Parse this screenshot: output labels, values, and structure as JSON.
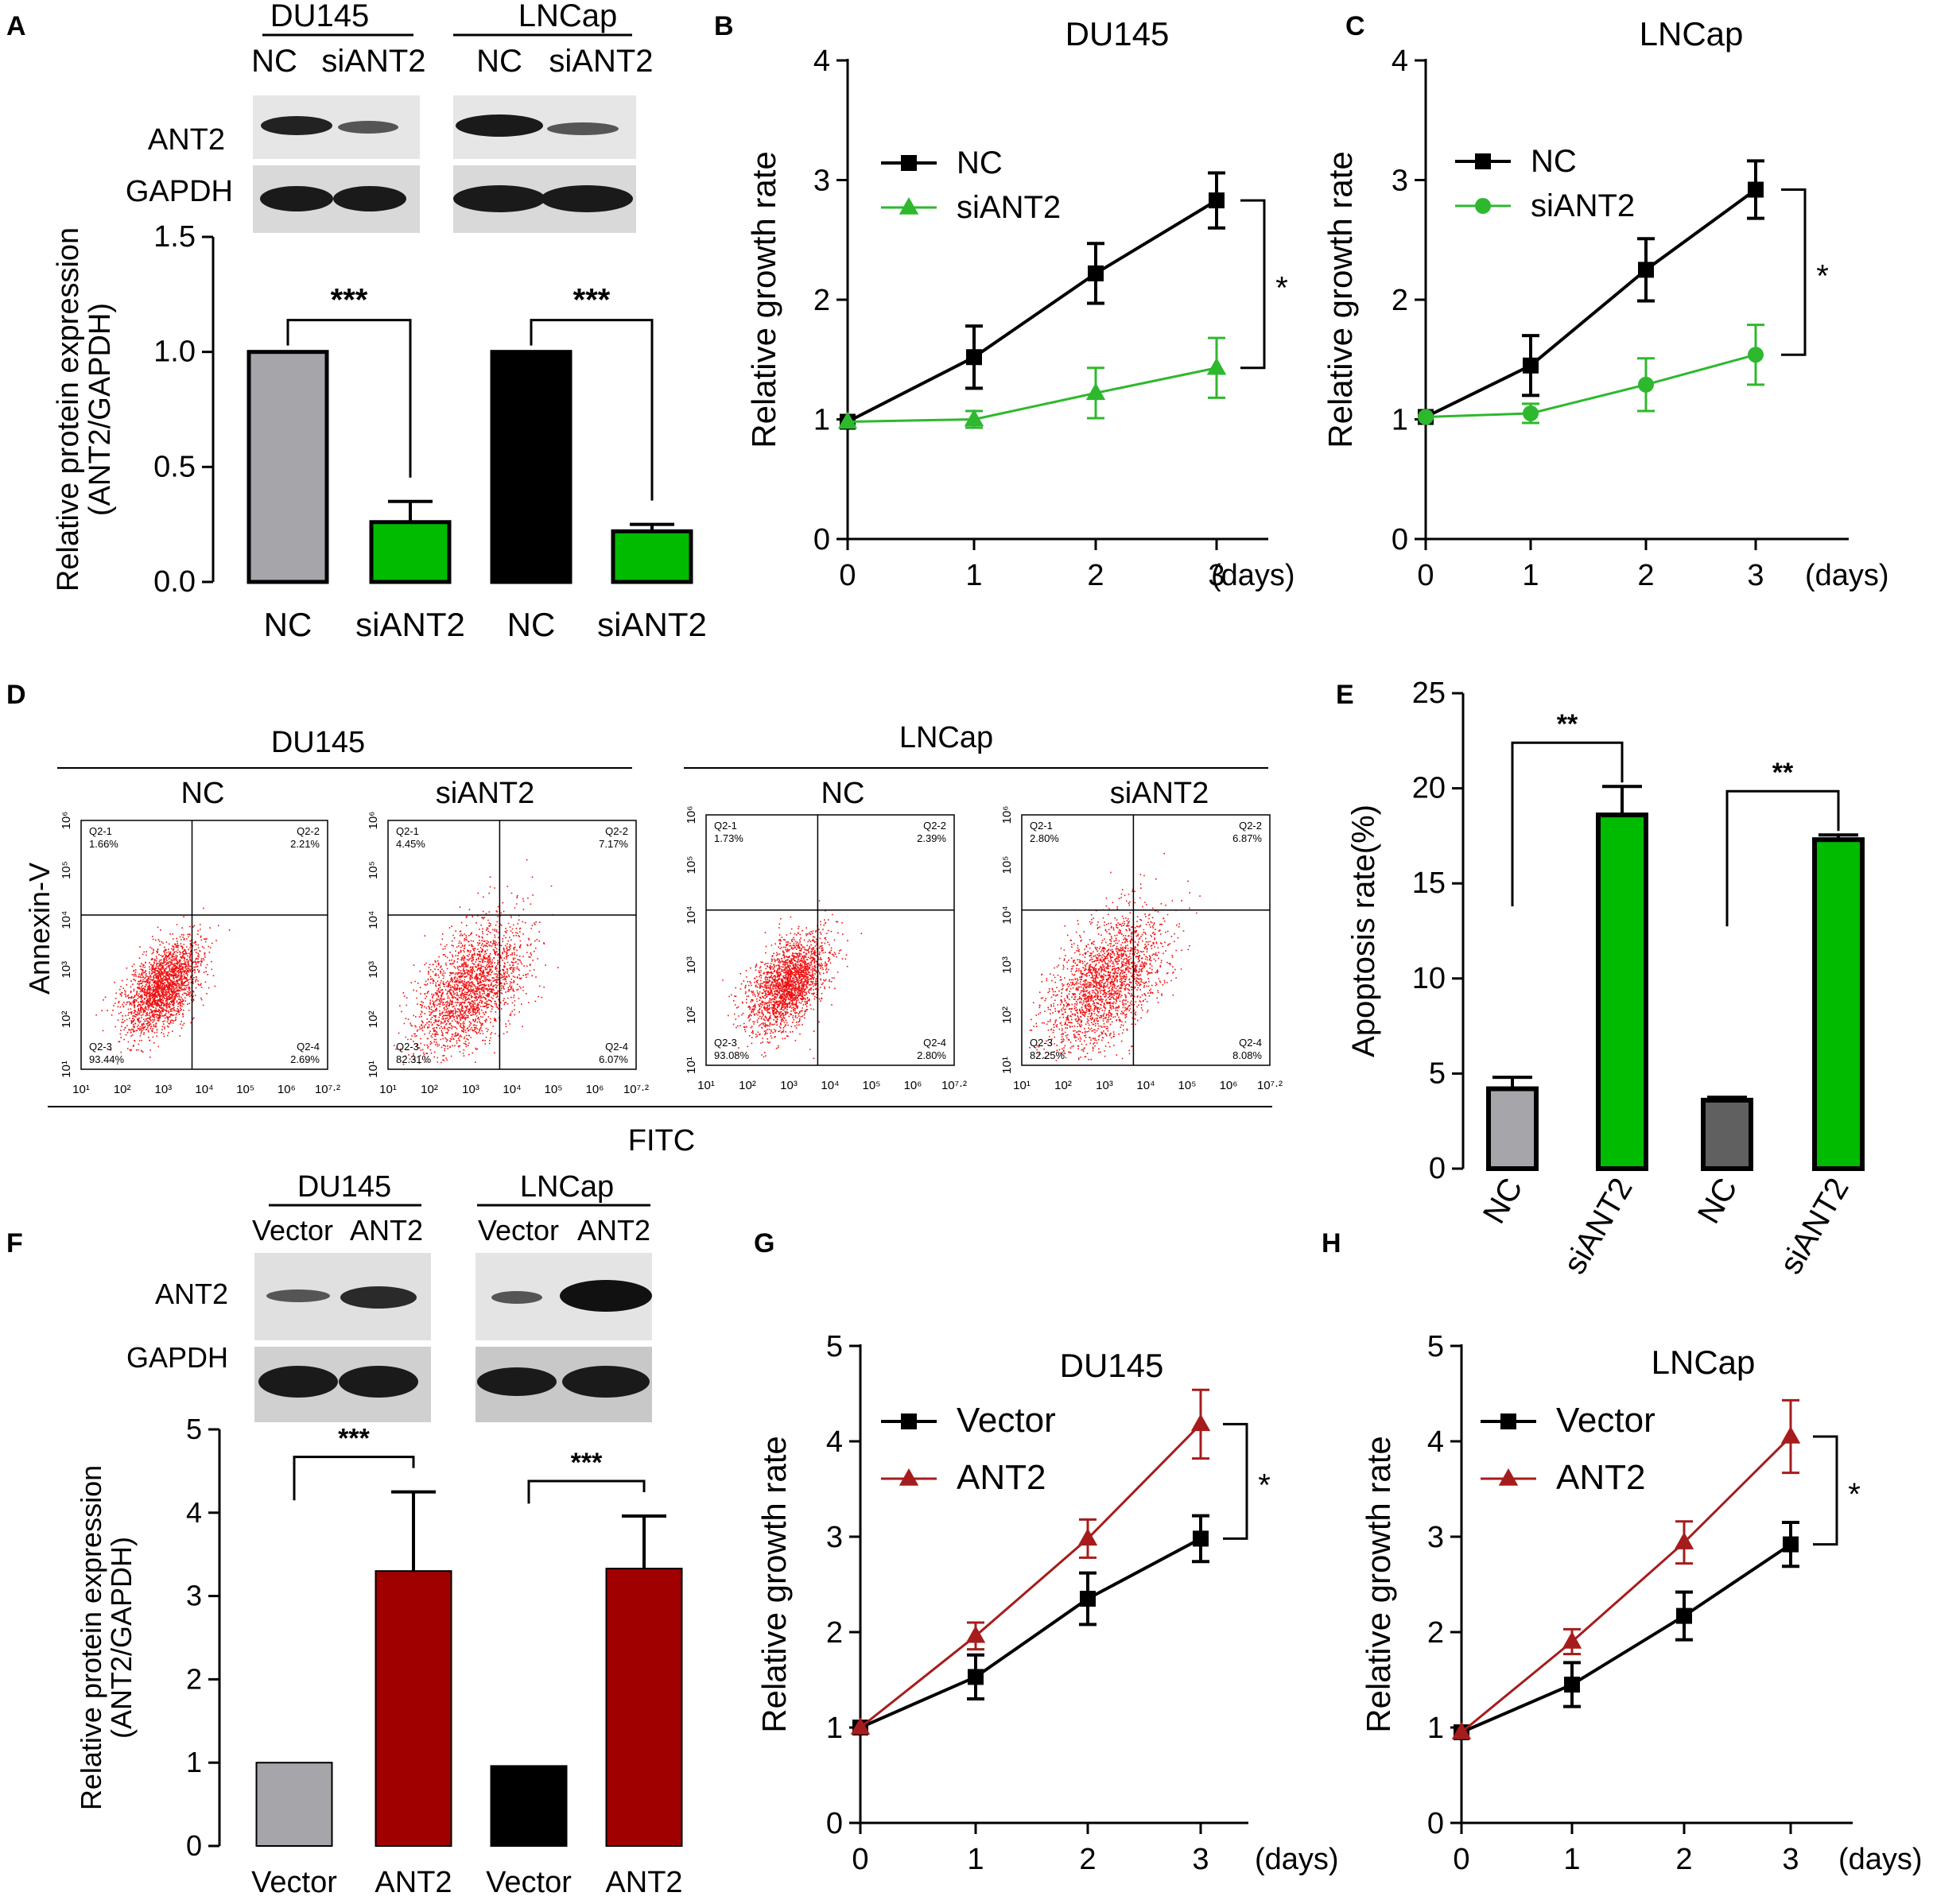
{
  "colors": {
    "black": "#000000",
    "grey": "#a6a6aa",
    "darkgrey": "#606060",
    "green": "#00bb00",
    "green_line": "#2eb82e",
    "red": "#a00000",
    "red_line": "#a61c1c",
    "dot": "#ee1111"
  },
  "panel_labels": {
    "A": "A",
    "B": "B",
    "C": "C",
    "D": "D",
    "E": "E",
    "F": "F",
    "G": "G",
    "H": "H"
  },
  "units": {
    "days": "(days)"
  },
  "cell_lines": {
    "du145": "DU145",
    "lncap": "LNCap"
  },
  "labels": {
    "nc": "NC",
    "siant2": "siANT2",
    "vector": "Vector",
    "ant2": "ANT2",
    "ant2_band": "ANT2",
    "gapdh_band": "GAPDH"
  },
  "sig": {
    "three": "***",
    "two": "**",
    "one": "*"
  },
  "facs": {
    "y_axis_label": "Annexin-V",
    "x_axis_label": "FITC",
    "x_ticks": [
      "10¹",
      "10²",
      "10³",
      "10⁴",
      "10⁵",
      "10⁶",
      "10⁷·²"
    ],
    "y_ticks": [
      "10¹",
      "10²",
      "10³",
      "10⁴",
      "10⁵",
      "10⁶"
    ],
    "quadrant_names": [
      "Q2-1",
      "Q2-2",
      "Q2-3",
      "Q2-4"
    ],
    "plots": [
      {
        "line": "DU145",
        "group": "NC",
        "q1": "1.66%",
        "q2": "2.21%",
        "q3": "93.44%",
        "q4": "2.69%"
      },
      {
        "line": "DU145",
        "group": "siANT2",
        "q1": "4.45%",
        "q2": "7.17%",
        "q3": "82.31%",
        "q4": "6.07%"
      },
      {
        "line": "LNCap",
        "group": "NC",
        "q1": "1.73%",
        "q2": "2.39%",
        "q3": "93.08%",
        "q4": "2.80%"
      },
      {
        "line": "LNCap",
        "group": "siANT2",
        "q1": "2.80%",
        "q2": "6.87%",
        "q3": "82.25%",
        "q4": "8.08%"
      }
    ]
  },
  "chart_data": [
    {
      "panel": "A",
      "type": "bar",
      "ylabel": "Relative protein expression (ANT2/GAPDH)",
      "ylim": [
        0,
        1.5
      ],
      "yticks": [
        "0.0",
        "0.5",
        "1.0",
        "1.5"
      ],
      "categories": [
        "NC",
        "siANT2",
        "NC",
        "siANT2"
      ],
      "values": [
        1.0,
        0.26,
        1.0,
        0.22
      ],
      "errors": [
        0,
        0.09,
        0,
        0.03
      ],
      "bar_colors": [
        "#a6a6aa",
        "#00bb00",
        "#000000",
        "#00bb00"
      ],
      "significance": [
        "***",
        "***"
      ]
    },
    {
      "panel": "B",
      "type": "line",
      "title": "DU145",
      "ylabel": "Relative growth rate",
      "xlabel": "(days)",
      "ylim": [
        0,
        4
      ],
      "yticks": [
        "0",
        "1",
        "2",
        "3",
        "4"
      ],
      "xticks": [
        "0",
        "1",
        "2",
        "3"
      ],
      "series": [
        {
          "name": "NC",
          "x": [
            0,
            1,
            2,
            3
          ],
          "values": [
            0.98,
            1.52,
            2.22,
            2.83
          ],
          "errors": [
            0.02,
            0.26,
            0.25,
            0.23
          ]
        },
        {
          "name": "siANT2",
          "x": [
            0,
            1,
            2,
            3
          ],
          "values": [
            0.98,
            1.0,
            1.22,
            1.43
          ],
          "errors": [
            0.02,
            0.07,
            0.21,
            0.25
          ]
        }
      ],
      "significance": "*"
    },
    {
      "panel": "C",
      "type": "line",
      "title": "LNCap",
      "ylabel": "Relative growth rate",
      "xlabel": "(days)",
      "ylim": [
        0,
        4
      ],
      "yticks": [
        "0",
        "1",
        "2",
        "3",
        "4"
      ],
      "xticks": [
        "0",
        "1",
        "2",
        "3"
      ],
      "series": [
        {
          "name": "NC",
          "x": [
            0,
            1,
            2,
            3
          ],
          "values": [
            1.02,
            1.45,
            2.25,
            2.92
          ],
          "errors": [
            0.02,
            0.25,
            0.26,
            0.24
          ]
        },
        {
          "name": "siANT2",
          "x": [
            0,
            1,
            2,
            3
          ],
          "values": [
            1.02,
            1.05,
            1.29,
            1.54
          ],
          "errors": [
            0.02,
            0.08,
            0.22,
            0.25
          ]
        }
      ],
      "significance": "*"
    },
    {
      "panel": "E",
      "type": "bar",
      "ylabel": "Apoptosis rate(%)",
      "ylim": [
        0,
        25
      ],
      "yticks": [
        "0",
        "5",
        "10",
        "15",
        "20",
        "25"
      ],
      "categories": [
        "NC",
        "siANT2",
        "NC",
        "siANT2"
      ],
      "values": [
        4.2,
        18.6,
        3.6,
        17.3
      ],
      "errors": [
        0.6,
        1.5,
        0.15,
        0.25
      ],
      "bar_colors": [
        "#a6a6aa",
        "#00bb00",
        "#606060",
        "#00bb00"
      ],
      "significance": [
        "**",
        "**"
      ]
    },
    {
      "panel": "F",
      "type": "bar",
      "ylabel": "Relative protein expression (ANT2/GAPDH)",
      "ylim": [
        0,
        5
      ],
      "yticks": [
        "0",
        "1",
        "2",
        "3",
        "4",
        "5"
      ],
      "categories": [
        "Vector",
        "ANT2",
        "Vector",
        "ANT2"
      ],
      "values": [
        1.0,
        3.3,
        0.96,
        3.33
      ],
      "errors": [
        0,
        0.95,
        0,
        0.63
      ],
      "bar_colors": [
        "#a6a6aa",
        "#a00000",
        "#000000",
        "#a00000"
      ],
      "significance": [
        "***",
        "***"
      ]
    },
    {
      "panel": "G",
      "type": "line",
      "title": "DU145",
      "ylabel": "Relative growth rate",
      "xlabel": "(days)",
      "ylim": [
        0,
        5
      ],
      "yticks": [
        "0",
        "1",
        "2",
        "3",
        "4",
        "5"
      ],
      "xticks": [
        "0",
        "1",
        "2",
        "3"
      ],
      "series": [
        {
          "name": "Vector",
          "x": [
            0,
            1,
            2,
            3
          ],
          "values": [
            1.0,
            1.53,
            2.35,
            2.98
          ],
          "errors": [
            0.02,
            0.23,
            0.27,
            0.24
          ]
        },
        {
          "name": "ANT2",
          "x": [
            0,
            1,
            2,
            3
          ],
          "values": [
            1.0,
            1.96,
            2.98,
            4.18
          ],
          "errors": [
            0.02,
            0.14,
            0.2,
            0.36
          ]
        }
      ],
      "significance": "*"
    },
    {
      "panel": "H",
      "type": "line",
      "title": "LNCap",
      "ylabel": "Relative growth rate",
      "xlabel": "(days)",
      "ylim": [
        0,
        5
      ],
      "yticks": [
        "0",
        "1",
        "2",
        "3",
        "4",
        "5"
      ],
      "xticks": [
        "0",
        "1",
        "2",
        "3"
      ],
      "series": [
        {
          "name": "Vector",
          "x": [
            0,
            1,
            2,
            3
          ],
          "values": [
            0.95,
            1.45,
            2.17,
            2.92
          ],
          "errors": [
            0.03,
            0.23,
            0.25,
            0.23
          ]
        },
        {
          "name": "ANT2",
          "x": [
            0,
            1,
            2,
            3
          ],
          "values": [
            0.95,
            1.9,
            2.94,
            4.05
          ],
          "errors": [
            0.03,
            0.13,
            0.22,
            0.38
          ]
        }
      ],
      "significance": "*"
    }
  ]
}
